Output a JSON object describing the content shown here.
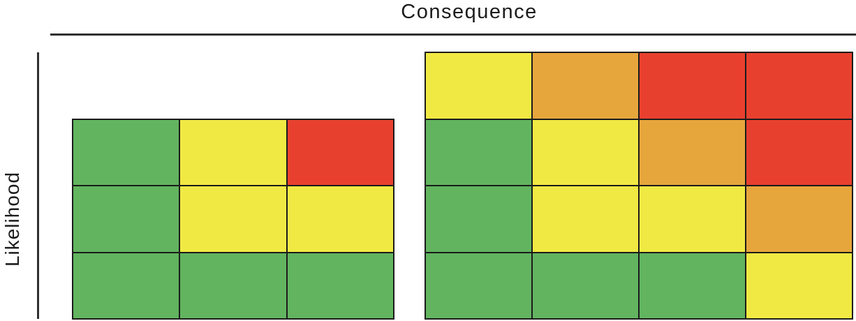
{
  "axes": {
    "x_label": "Consequence",
    "y_label": "Likelihood"
  },
  "colors": {
    "green": "#62b45f",
    "yellow": "#f1e943",
    "orange": "#e7a63c",
    "red": "#e8402f",
    "grid_line": "#1b1b1b",
    "axis_line": "#2f2f2f",
    "text": "#1c1c1c",
    "background": "#ffffff"
  },
  "chart_data": {
    "type": "heatmap",
    "title": "",
    "xlabel": "Consequence",
    "ylabel": "Likelihood",
    "matrices": [
      {
        "name": "risk-matrix-3x3",
        "rows": 3,
        "cols": 3,
        "cells": [
          [
            "green",
            "yellow",
            "red"
          ],
          [
            "green",
            "yellow",
            "yellow"
          ],
          [
            "green",
            "green",
            "green"
          ]
        ]
      },
      {
        "name": "risk-matrix-4x4",
        "rows": 4,
        "cols": 4,
        "cells": [
          [
            "yellow",
            "orange",
            "red",
            "red"
          ],
          [
            "green",
            "yellow",
            "orange",
            "red"
          ],
          [
            "green",
            "yellow",
            "yellow",
            "orange"
          ],
          [
            "green",
            "green",
            "green",
            "yellow"
          ]
        ]
      }
    ]
  }
}
